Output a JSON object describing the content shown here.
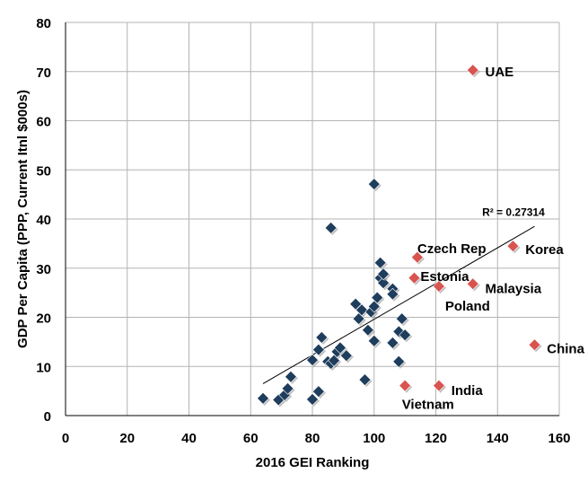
{
  "chart_data": {
    "type": "scatter",
    "xlabel": "2016 GEI Ranking",
    "ylabel": "GDP Per Capita  (PPP, Current Itnl $000s)",
    "xlim": [
      0,
      160
    ],
    "ylim": [
      0,
      80
    ],
    "x_ticks": [
      "0",
      "20",
      "40",
      "60",
      "80",
      "100",
      "120",
      "140",
      "160"
    ],
    "y_ticks": [
      "0",
      "10",
      "20",
      "30",
      "40",
      "50",
      "60",
      "70",
      "80"
    ],
    "grid": true,
    "colors": {
      "primary": "#1f3d5c",
      "highlight": "#d9534f",
      "grid": "#b3b3b3"
    },
    "series": [
      {
        "points": [
          [
            64,
            3.5
          ],
          [
            69,
            3.2
          ],
          [
            71,
            4.2
          ],
          [
            72,
            5.5
          ],
          [
            73,
            7.9
          ],
          [
            80,
            3.3
          ],
          [
            82,
            4.9
          ],
          [
            80,
            11.3
          ],
          [
            82,
            13.4
          ],
          [
            83,
            15.9
          ],
          [
            85,
            11.0
          ],
          [
            86,
            10.6
          ],
          [
            87,
            11.2
          ],
          [
            88,
            13.0
          ],
          [
            89,
            13.8
          ],
          [
            91,
            12.2
          ],
          [
            86,
            38.2
          ],
          [
            94,
            22.7
          ],
          [
            95,
            19.7
          ],
          [
            96,
            21.5
          ],
          [
            97,
            7.3
          ],
          [
            98,
            17.4
          ],
          [
            99,
            21.1
          ],
          [
            100,
            15.2
          ],
          [
            100,
            22.2
          ],
          [
            100,
            47.1
          ],
          [
            101,
            24.0
          ],
          [
            102,
            28.0
          ],
          [
            102,
            31.1
          ],
          [
            103,
            27.0
          ],
          [
            103,
            28.8
          ],
          [
            106,
            25.8
          ],
          [
            106,
            24.7
          ],
          [
            106,
            14.8
          ],
          [
            108,
            11.0
          ],
          [
            108,
            17.1
          ],
          [
            109,
            19.7
          ],
          [
            110,
            16.4
          ]
        ]
      },
      {
        "points": [
          [
            132,
            70.3
          ],
          [
            114,
            32.2
          ],
          [
            113,
            28.0
          ],
          [
            121,
            26.3
          ],
          [
            132,
            26.8
          ],
          [
            145,
            34.5
          ],
          [
            152,
            14.4
          ],
          [
            110,
            6.1
          ],
          [
            121,
            6.1
          ]
        ]
      }
    ],
    "annotations": [
      {
        "text": "UAE",
        "x": 136,
        "y": 70
      },
      {
        "text": "Czech Rep",
        "x": 114,
        "y": 34
      },
      {
        "text": "Estonia",
        "x": 115,
        "y": 28.3
      },
      {
        "text": "Korea",
        "x": 149,
        "y": 33.8
      },
      {
        "text": "Poland",
        "x": 123,
        "y": 22.3
      },
      {
        "text": "Malaysia",
        "x": 136,
        "y": 25.8
      },
      {
        "text": "China",
        "x": 156,
        "y": 13.6
      },
      {
        "text": "India",
        "x": 125,
        "y": 5.1
      },
      {
        "text": "Vietnam",
        "x": 109,
        "y": 2.3
      }
    ],
    "trendline": {
      "x_start": 64,
      "y_start": 6.5,
      "x_end": 152,
      "y_end": 38.5,
      "label": "R² = 0.27314",
      "label_x": 135,
      "label_y": 40.6
    }
  }
}
